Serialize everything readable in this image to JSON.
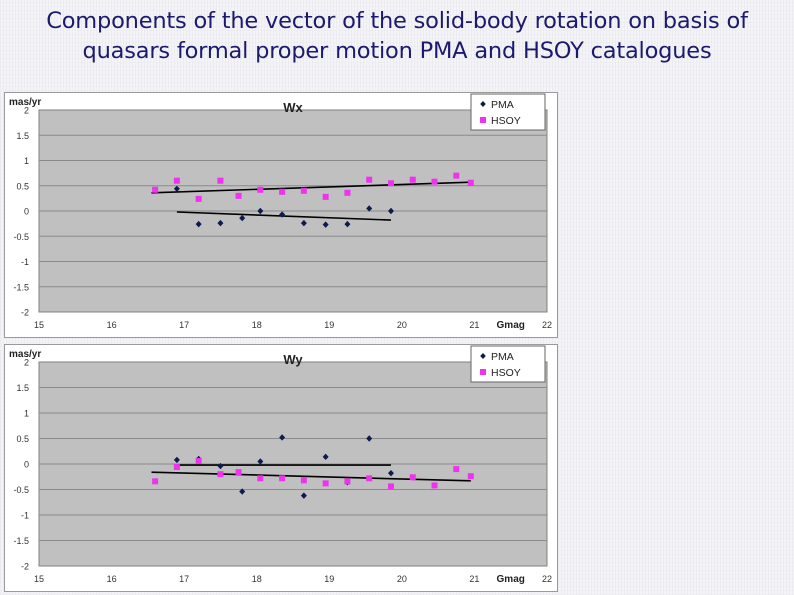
{
  "slide": {
    "title_line1": "Components of the vector of the solid-body rotation on basis of",
    "title_line2": "quasars formal proper motion PMA  and HSOY catalogues"
  },
  "colors": {
    "title": "#1c1a6e",
    "plot_bg": "#c0c0c0",
    "pma": "#0d1b4f",
    "hsoy": "#ee33ee",
    "trend": "#000000"
  },
  "chart_data": [
    {
      "type": "scatter",
      "title": "Wx",
      "ylabel": "mas/yr",
      "xlabel": "Gmag",
      "xlim": [
        15,
        22
      ],
      "ylim": [
        -2,
        2
      ],
      "x_ticks": [
        15,
        16,
        17,
        18,
        19,
        20,
        21,
        22
      ],
      "y_ticks": [
        -2,
        -1.5,
        -1,
        -0.5,
        0,
        0.5,
        1,
        1.5,
        2
      ],
      "grid": "horizontal",
      "legend": "top-right",
      "series": [
        {
          "name": "PMA",
          "marker": "diamond",
          "color": "#0d1b4f",
          "points": [
            [
              16.9,
              0.44
            ],
            [
              17.2,
              -0.26
            ],
            [
              17.5,
              -0.24
            ],
            [
              17.8,
              -0.14
            ],
            [
              18.05,
              0.0
            ],
            [
              18.35,
              -0.07
            ],
            [
              18.65,
              -0.24
            ],
            [
              18.95,
              -0.27
            ],
            [
              19.25,
              -0.26
            ],
            [
              19.55,
              0.05
            ],
            [
              19.85,
              0.0
            ]
          ],
          "trend": [
            [
              16.9,
              -0.02
            ],
            [
              19.85,
              -0.18
            ]
          ]
        },
        {
          "name": "HSOY",
          "marker": "square",
          "color": "#ee33ee",
          "points": [
            [
              16.6,
              0.42
            ],
            [
              16.9,
              0.6
            ],
            [
              17.2,
              0.24
            ],
            [
              17.5,
              0.6
            ],
            [
              17.75,
              0.3
            ],
            [
              18.05,
              0.42
            ],
            [
              18.35,
              0.38
            ],
            [
              18.65,
              0.4
            ],
            [
              18.95,
              0.28
            ],
            [
              19.25,
              0.36
            ],
            [
              19.55,
              0.62
            ],
            [
              19.85,
              0.55
            ],
            [
              20.15,
              0.62
            ],
            [
              20.45,
              0.58
            ],
            [
              20.75,
              0.7
            ],
            [
              20.95,
              0.56
            ]
          ],
          "trend": [
            [
              16.55,
              0.36
            ],
            [
              20.95,
              0.57
            ]
          ]
        }
      ]
    },
    {
      "type": "scatter",
      "title": "Wy",
      "ylabel": "mas/yr",
      "xlabel": "Gmag",
      "xlim": [
        15,
        22
      ],
      "ylim": [
        -2,
        2
      ],
      "x_ticks": [
        15,
        16,
        17,
        18,
        19,
        20,
        21,
        22
      ],
      "y_ticks": [
        -2,
        -1.5,
        -1,
        -0.5,
        0,
        0.5,
        1,
        1.5,
        2
      ],
      "grid": "horizontal",
      "legend": "top-right",
      "series": [
        {
          "name": "PMA",
          "marker": "diamond",
          "color": "#0d1b4f",
          "points": [
            [
              16.9,
              0.08
            ],
            [
              17.2,
              0.1
            ],
            [
              17.5,
              -0.04
            ],
            [
              17.8,
              -0.54
            ],
            [
              18.05,
              0.05
            ],
            [
              18.35,
              0.52
            ],
            [
              18.65,
              -0.62
            ],
            [
              18.95,
              0.14
            ],
            [
              19.25,
              -0.36
            ],
            [
              19.55,
              0.5
            ],
            [
              19.85,
              -0.18
            ]
          ],
          "trend": [
            [
              16.9,
              -0.02
            ],
            [
              19.85,
              -0.02
            ]
          ]
        },
        {
          "name": "HSOY",
          "marker": "square",
          "color": "#ee33ee",
          "points": [
            [
              16.6,
              -0.34
            ],
            [
              16.9,
              -0.06
            ],
            [
              17.2,
              0.06
            ],
            [
              17.5,
              -0.2
            ],
            [
              17.75,
              -0.16
            ],
            [
              18.05,
              -0.28
            ],
            [
              18.35,
              -0.28
            ],
            [
              18.65,
              -0.32
            ],
            [
              18.95,
              -0.38
            ],
            [
              19.25,
              -0.34
            ],
            [
              19.55,
              -0.28
            ],
            [
              19.85,
              -0.44
            ],
            [
              20.15,
              -0.26
            ],
            [
              20.45,
              -0.42
            ],
            [
              20.75,
              -0.1
            ],
            [
              20.95,
              -0.24
            ]
          ],
          "trend": [
            [
              16.55,
              -0.16
            ],
            [
              20.95,
              -0.33
            ]
          ]
        }
      ]
    }
  ]
}
